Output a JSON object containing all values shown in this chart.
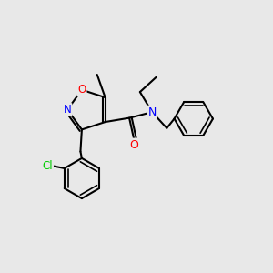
{
  "background_color": "#e8e8e8",
  "bond_color": "#000000",
  "atom_colors": {
    "O": "#ff0000",
    "N": "#0000ff",
    "Cl": "#00cc00",
    "C": "#000000"
  },
  "figsize": [
    3.0,
    3.0
  ],
  "dpi": 100
}
